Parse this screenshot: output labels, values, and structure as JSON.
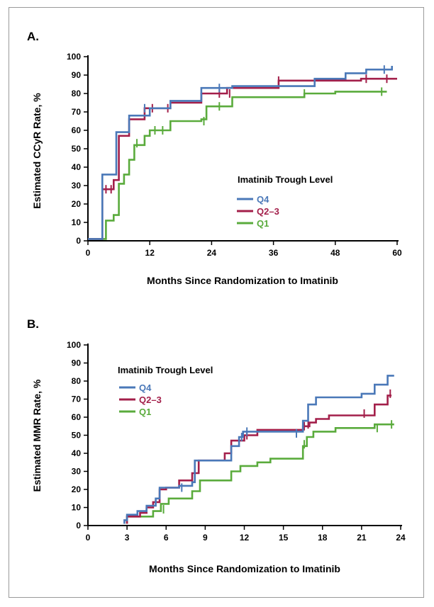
{
  "chart_data": [
    {
      "type": "line",
      "panel_label": "A.",
      "xlabel": "Months Since Randomization to Imatinib",
      "ylabel": "Estimated CCyR Rate, %",
      "xlim": [
        0,
        60
      ],
      "ylim": [
        0,
        100
      ],
      "xticks": [
        "0",
        "12",
        "24",
        "36",
        "48",
        "60"
      ],
      "yticks": [
        "0",
        "10",
        "20",
        "30",
        "40",
        "50",
        "60",
        "70",
        "80",
        "90",
        "100"
      ],
      "grid": false,
      "legend_title": "Imatinib Trough Level",
      "legend_position": "center-right",
      "series": [
        {
          "name": "Q4",
          "color": "#4a78b8",
          "points": [
            [
              0,
              1
            ],
            [
              2.8,
              1
            ],
            [
              2.8,
              36
            ],
            [
              5.5,
              36
            ],
            [
              5.5,
              59
            ],
            [
              8,
              59
            ],
            [
              8,
              68
            ],
            [
              12,
              68
            ],
            [
              12,
              72
            ],
            [
              16,
              72
            ],
            [
              16,
              76
            ],
            [
              22,
              76
            ],
            [
              22,
              83
            ],
            [
              28,
              83
            ],
            [
              28,
              84
            ],
            [
              44,
              84
            ],
            [
              44,
              88
            ],
            [
              50,
              88
            ],
            [
              50,
              91
            ],
            [
              54,
              91
            ],
            [
              54,
              93
            ],
            [
              59,
              93
            ],
            [
              59,
              95
            ]
          ],
          "censors": [
            [
              11,
              72
            ],
            [
              25.5,
              83
            ],
            [
              57.5,
              93
            ]
          ]
        },
        {
          "name": "Q2–3",
          "color": "#a31f4a",
          "points": [
            [
              0,
              1
            ],
            [
              2.8,
              1
            ],
            [
              2.8,
              28
            ],
            [
              5,
              28
            ],
            [
              5,
              33
            ],
            [
              6,
              33
            ],
            [
              6,
              57
            ],
            [
              8,
              57
            ],
            [
              8,
              66
            ],
            [
              11,
              66
            ],
            [
              11,
              72
            ],
            [
              16,
              72
            ],
            [
              16,
              75
            ],
            [
              22,
              75
            ],
            [
              22,
              80
            ],
            [
              27,
              80
            ],
            [
              27,
              83
            ],
            [
              37,
              83
            ],
            [
              37,
              87
            ],
            [
              53,
              87
            ],
            [
              53,
              88
            ],
            [
              60,
              88
            ]
          ],
          "censors": [
            [
              3.5,
              28
            ],
            [
              4.5,
              28
            ],
            [
              12.5,
              72
            ],
            [
              15.5,
              72
            ],
            [
              25.5,
              80
            ],
            [
              27.5,
              80
            ],
            [
              37,
              87
            ],
            [
              54,
              88
            ],
            [
              58,
              88
            ]
          ]
        },
        {
          "name": "Q1",
          "color": "#5aab3c",
          "points": [
            [
              0,
              1
            ],
            [
              3.5,
              1
            ],
            [
              3.5,
              11
            ],
            [
              5,
              11
            ],
            [
              5,
              14
            ],
            [
              6,
              14
            ],
            [
              6,
              31
            ],
            [
              7,
              31
            ],
            [
              7,
              36
            ],
            [
              8,
              36
            ],
            [
              8,
              44
            ],
            [
              9,
              44
            ],
            [
              9,
              52
            ],
            [
              11,
              52
            ],
            [
              11,
              57
            ],
            [
              12,
              57
            ],
            [
              12,
              60
            ],
            [
              16,
              60
            ],
            [
              16,
              65
            ],
            [
              22,
              65
            ],
            [
              22,
              66
            ],
            [
              23,
              66
            ],
            [
              23,
              73
            ],
            [
              28,
              73
            ],
            [
              28,
              78
            ],
            [
              42,
              78
            ],
            [
              42,
              80
            ],
            [
              48,
              80
            ],
            [
              48,
              81
            ],
            [
              58,
              81
            ]
          ],
          "censors": [
            [
              9.5,
              53
            ],
            [
              13,
              60
            ],
            [
              14.5,
              60
            ],
            [
              22.5,
              65
            ],
            [
              25.5,
              73
            ],
            [
              42,
              80
            ],
            [
              57,
              81
            ]
          ]
        }
      ]
    },
    {
      "type": "line",
      "panel_label": "B.",
      "xlabel": "Months Since Randomization to Imatinib",
      "ylabel": "Estimated MMR Rate, %",
      "xlim": [
        0,
        24
      ],
      "ylim": [
        0,
        100
      ],
      "xticks": [
        "0",
        "3",
        "6",
        "9",
        "12",
        "15",
        "18",
        "21",
        "24"
      ],
      "yticks": [
        "0",
        "10",
        "20",
        "30",
        "40",
        "50",
        "60",
        "70",
        "80",
        "90",
        "100"
      ],
      "grid": false,
      "legend_title": "Imatinib Trough Level",
      "legend_position": "top-left",
      "series": [
        {
          "name": "Q4",
          "color": "#4a78b8",
          "points": [
            [
              2.8,
              1
            ],
            [
              2.8,
              3
            ],
            [
              3,
              3
            ],
            [
              3,
              6
            ],
            [
              3.8,
              6
            ],
            [
              3.8,
              8
            ],
            [
              4.5,
              8
            ],
            [
              4.5,
              11
            ],
            [
              5.2,
              11
            ],
            [
              5.2,
              15
            ],
            [
              5.5,
              15
            ],
            [
              5.5,
              21
            ],
            [
              7,
              21
            ],
            [
              7,
              22
            ],
            [
              8,
              22
            ],
            [
              8,
              24
            ],
            [
              8.2,
              24
            ],
            [
              8.2,
              36
            ],
            [
              11,
              36
            ],
            [
              11,
              44
            ],
            [
              11.6,
              44
            ],
            [
              11.6,
              49
            ],
            [
              11.9,
              49
            ],
            [
              11.9,
              52
            ],
            [
              16.5,
              52
            ],
            [
              16.5,
              58
            ],
            [
              16.9,
              58
            ],
            [
              16.9,
              67
            ],
            [
              17.5,
              67
            ],
            [
              17.5,
              71
            ],
            [
              21,
              71
            ],
            [
              21,
              73
            ],
            [
              22,
              73
            ],
            [
              22,
              78
            ],
            [
              23,
              78
            ],
            [
              23,
              83
            ],
            [
              23.5,
              83
            ]
          ],
          "censors": [
            [
              7.2,
              21
            ],
            [
              11.8,
              49
            ],
            [
              12.2,
              52
            ],
            [
              16,
              51
            ]
          ]
        },
        {
          "name": "Q2–3",
          "color": "#a31f4a",
          "points": [
            [
              3,
              1
            ],
            [
              3,
              5
            ],
            [
              4,
              5
            ],
            [
              4,
              7
            ],
            [
              4.5,
              7
            ],
            [
              4.5,
              10
            ],
            [
              5,
              10
            ],
            [
              5,
              13
            ],
            [
              5.5,
              13
            ],
            [
              5.5,
              20
            ],
            [
              6,
              20
            ],
            [
              6,
              21
            ],
            [
              7,
              21
            ],
            [
              7,
              25
            ],
            [
              8,
              25
            ],
            [
              8,
              29
            ],
            [
              8.5,
              29
            ],
            [
              8.5,
              36
            ],
            [
              10.5,
              36
            ],
            [
              10.5,
              40
            ],
            [
              11,
              40
            ],
            [
              11,
              47
            ],
            [
              12,
              47
            ],
            [
              12,
              50
            ],
            [
              13,
              50
            ],
            [
              13,
              53
            ],
            [
              16.5,
              53
            ],
            [
              16.5,
              55
            ],
            [
              17,
              55
            ],
            [
              17,
              57
            ],
            [
              17.5,
              57
            ],
            [
              17.5,
              59
            ],
            [
              18.5,
              59
            ],
            [
              18.5,
              61
            ],
            [
              22,
              61
            ],
            [
              22,
              67
            ],
            [
              23,
              67
            ],
            [
              23,
              72
            ],
            [
              23.3,
              72
            ]
          ],
          "censors": [
            [
              12.2,
              50
            ],
            [
              16.6,
              55
            ],
            [
              16.9,
              56
            ],
            [
              21.2,
              62
            ],
            [
              23.2,
              73
            ]
          ]
        },
        {
          "name": "Q1",
          "color": "#5aab3c",
          "points": [
            [
              3,
              1
            ],
            [
              3,
              5
            ],
            [
              4,
              5
            ],
            [
              4,
              5
            ],
            [
              5,
              5
            ],
            [
              5,
              8
            ],
            [
              5.6,
              8
            ],
            [
              5.6,
              12
            ],
            [
              6.2,
              12
            ],
            [
              6.2,
              15
            ],
            [
              8,
              15
            ],
            [
              8,
              19
            ],
            [
              8.6,
              19
            ],
            [
              8.6,
              25
            ],
            [
              11,
              25
            ],
            [
              11,
              30
            ],
            [
              11.7,
              30
            ],
            [
              11.7,
              33
            ],
            [
              13,
              33
            ],
            [
              13,
              35
            ],
            [
              14,
              35
            ],
            [
              14,
              37
            ],
            [
              16.5,
              37
            ],
            [
              16.5,
              44
            ],
            [
              16.8,
              44
            ],
            [
              16.8,
              49
            ],
            [
              17.3,
              49
            ],
            [
              17.3,
              52
            ],
            [
              19,
              52
            ],
            [
              19,
              54
            ],
            [
              22,
              54
            ],
            [
              22,
              56
            ],
            [
              23.5,
              56
            ]
          ],
          "censors": [
            [
              5.8,
              9
            ],
            [
              16.6,
              45
            ],
            [
              22.2,
              54
            ],
            [
              23.3,
              56
            ]
          ]
        }
      ]
    }
  ]
}
